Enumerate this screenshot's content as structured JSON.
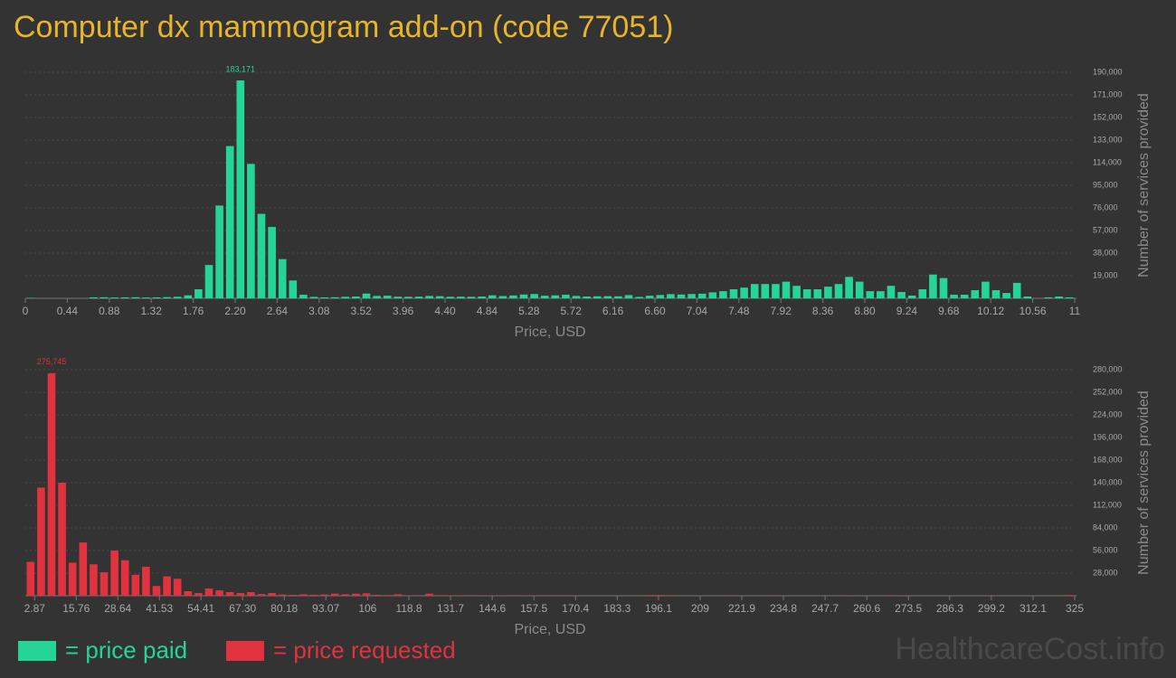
{
  "title": "Computer dx mammogram add-on (code 77051)",
  "watermark": "HealthcareCost.info",
  "chart_data": [
    {
      "type": "histogram",
      "x_label": "Price, USD",
      "y_label": "Number of services provided",
      "grid": true,
      "y_axis_side": "right",
      "bins": [
        0,
        0.11,
        0.22,
        0.33,
        0.44,
        0.55,
        0.66,
        0.77,
        0.88,
        0.99,
        1.1,
        1.21,
        1.32,
        1.43,
        1.54,
        1.65,
        1.76,
        1.87,
        1.98,
        2.09,
        2.2,
        2.31,
        2.42,
        2.53,
        2.64,
        2.75,
        2.86,
        2.97,
        3.08,
        3.19,
        3.3,
        3.41,
        3.52,
        3.63,
        3.74,
        3.85,
        3.96,
        4.07,
        4.18,
        4.29,
        4.4,
        4.51,
        4.62,
        4.73,
        4.84,
        4.95,
        5.06,
        5.17,
        5.28,
        5.39,
        5.5,
        5.61,
        5.72,
        5.83,
        5.94,
        6.05,
        6.16,
        6.27,
        6.38,
        6.49,
        6.6,
        6.71,
        6.82,
        6.93,
        7.04,
        7.15,
        7.26,
        7.37,
        7.48,
        7.59,
        7.7,
        7.81,
        7.92,
        8.03,
        8.14,
        8.25,
        8.36,
        8.47,
        8.58,
        8.69,
        8.8,
        8.91,
        9.02,
        9.13,
        9.24,
        9.35,
        9.46,
        9.57,
        9.68,
        9.79,
        9.9,
        10.01,
        10.12,
        10.23,
        10.34,
        10.45,
        10.56,
        10.67,
        10.78,
        10.89,
        11
      ],
      "series": [
        {
          "name": "= price paid",
          "color": "#25d597",
          "values": [
            300,
            0,
            0,
            0,
            0,
            0,
            800,
            900,
            700,
            800,
            900,
            700,
            800,
            1000,
            1300,
            2500,
            7600,
            28000,
            78000,
            128000,
            183171,
            113000,
            71000,
            60000,
            33000,
            15000,
            3000,
            1200,
            800,
            900,
            1300,
            1500,
            4000,
            2000,
            2200,
            1400,
            1300,
            1400,
            2000,
            1800,
            1300,
            1400,
            1300,
            1500,
            2500,
            1900,
            2400,
            3200,
            3600,
            2200,
            2500,
            3000,
            2000,
            1500,
            1700,
            1800,
            1700,
            2700,
            1200,
            2200,
            2800,
            3500,
            3200,
            3600,
            3900,
            5000,
            6000,
            7600,
            9000,
            12000,
            12000,
            12000,
            14000,
            10500,
            7600,
            7600,
            9800,
            12000,
            18000,
            14000,
            6000,
            6000,
            10500,
            5300,
            2300,
            7600,
            20000,
            17000,
            3000,
            3000,
            6800,
            14000,
            6800,
            4500,
            13000,
            1500,
            0,
            800,
            1500,
            800
          ],
          "value_labels": [
            null,
            null,
            null,
            null,
            null,
            null,
            null,
            null,
            null,
            null,
            null,
            null,
            null,
            null,
            null,
            null,
            null,
            null,
            null,
            null,
            "183,171",
            null,
            null,
            null,
            null,
            null,
            null,
            null,
            null,
            null,
            null,
            null,
            null,
            null,
            null,
            null,
            null,
            null,
            null,
            null,
            null,
            null,
            null,
            null,
            null,
            null,
            null,
            null,
            null,
            null,
            null,
            null,
            null,
            null,
            null,
            null,
            null,
            null,
            null,
            null,
            null,
            null,
            null,
            null,
            null,
            null,
            null,
            null,
            null,
            null,
            null,
            null,
            null,
            null,
            null,
            null,
            null,
            null,
            null,
            null,
            null,
            null,
            null,
            null,
            null,
            null,
            null,
            null,
            null,
            null,
            null,
            null,
            null,
            null,
            null,
            null,
            null,
            null,
            null,
            null
          ]
        }
      ],
      "xlim": [
        0,
        11
      ],
      "xticks": [
        0,
        0.44,
        0.88,
        1.32,
        1.76,
        {
          "value": 2.2,
          "label": "2.20"
        },
        2.64,
        3.08,
        3.52,
        3.96,
        {
          "value": 4.4,
          "label": "4.40"
        },
        4.84,
        5.28,
        5.72,
        6.16,
        {
          "value": 6.6,
          "label": "6.60"
        },
        7.04,
        7.48,
        7.92,
        8.36,
        {
          "value": 8.8,
          "label": "8.80"
        },
        9.24,
        9.68,
        10.12,
        10.56,
        11
      ],
      "ylim": [
        0,
        190000
      ],
      "yticks": [
        {
          "value": 19000,
          "label": "19,000"
        },
        {
          "value": 38000,
          "label": "38,000"
        },
        {
          "value": 57000,
          "label": "57,000"
        },
        {
          "value": 76000,
          "label": "76,000"
        },
        {
          "value": 95000,
          "label": "95,000"
        },
        {
          "value": 114000,
          "label": "114,000"
        },
        {
          "value": 133000,
          "label": "133,000"
        },
        {
          "value": 152000,
          "label": "152,000"
        },
        {
          "value": 171000,
          "label": "171,000"
        },
        {
          "value": 190000,
          "label": "190,000"
        }
      ]
    },
    {
      "type": "histogram",
      "x_label": "Price, USD",
      "y_label": "Number of services provided",
      "grid": true,
      "y_axis_side": "right",
      "bins": [
        0,
        3.25,
        6.5,
        9.75,
        13,
        16.25,
        19.5,
        22.75,
        26,
        29.25,
        32.5,
        35.75,
        39,
        42.25,
        45.5,
        48.75,
        52,
        55.25,
        58.5,
        61.75,
        65,
        68.25,
        71.5,
        74.75,
        78,
        81.25,
        84.5,
        87.75,
        91,
        94.25,
        97.5,
        100.75,
        104,
        107.25,
        110.5,
        113.75,
        117,
        120.25,
        123.5,
        126.75,
        130,
        133.25,
        136.5,
        139.75,
        143,
        146.25,
        149.5,
        152.75,
        156,
        159.25,
        162.5,
        165.75,
        169,
        172.25,
        175.5,
        178.75,
        182,
        185.25,
        188.5,
        191.75,
        195,
        198.25,
        201.5,
        204.75,
        208,
        211.25,
        214.5,
        217.75,
        221,
        224.25,
        227.5,
        230.75,
        234,
        237.25,
        240.5,
        243.75,
        247,
        250.25,
        253.5,
        256.75,
        260,
        263.25,
        266.5,
        269.75,
        273,
        276.25,
        279.5,
        282.75,
        286,
        289.25,
        292.5,
        295.75,
        299,
        302.25,
        305.5,
        308.75,
        312,
        315.25,
        318.5,
        321.75,
        325
      ],
      "series": [
        {
          "name": "= price requested",
          "color": "#e0323f",
          "values": [
            42000,
            134000,
            275745,
            140000,
            41000,
            66000,
            39000,
            29000,
            56000,
            44000,
            26000,
            36000,
            12000,
            24000,
            21000,
            5600,
            3400,
            9000,
            6700,
            4500,
            3400,
            4500,
            2200,
            3400,
            1500,
            1100,
            1800,
            1200,
            1500,
            2600,
            1800,
            2500,
            3000,
            1200,
            800,
            1800,
            400,
            300,
            2600,
            700,
            600,
            500,
            400,
            300,
            500,
            400,
            300,
            400,
            300,
            200,
            200,
            200,
            100,
            100,
            100,
            100,
            100,
            100,
            200,
            800,
            900,
            700,
            100,
            100,
            100,
            100,
            100,
            200,
            100,
            100,
            100,
            300,
            100,
            100,
            100,
            100,
            100,
            100,
            400,
            100,
            100,
            100,
            400,
            300,
            100,
            100,
            100,
            100,
            100,
            100,
            100,
            200,
            100,
            100,
            100,
            100,
            100,
            100,
            100,
            900
          ],
          "value_labels": [
            null,
            null,
            "275,745",
            null,
            null,
            null,
            null,
            null,
            null,
            null,
            null,
            null,
            null,
            null,
            null,
            null,
            null,
            null,
            null,
            null,
            null,
            null,
            null,
            null,
            null,
            null,
            null,
            null,
            null,
            null,
            null,
            null,
            null,
            null,
            null,
            null,
            null,
            null,
            null,
            null,
            null,
            null,
            null,
            null,
            null,
            null,
            null,
            null,
            null,
            null,
            null,
            null,
            null,
            null,
            null,
            null,
            null,
            null,
            null,
            null,
            null,
            null,
            null,
            null,
            null,
            null,
            null,
            null,
            null,
            null,
            null,
            null,
            null,
            null,
            null,
            null,
            null,
            null,
            null,
            null,
            null,
            null,
            null,
            null,
            null,
            null,
            null,
            null,
            null,
            null,
            null,
            null,
            null,
            null,
            null,
            null,
            null,
            null,
            null,
            null
          ]
        }
      ],
      "xlim": [
        0,
        325
      ],
      "xticks": [
        2.87,
        15.76,
        28.64,
        41.53,
        54.41,
        {
          "value": 67.3,
          "label": "67.30"
        },
        80.18,
        93.07,
        106,
        118.8,
        131.7,
        144.6,
        157.5,
        170.4,
        183.3,
        196.1,
        209,
        221.9,
        234.8,
        247.7,
        260.6,
        273.5,
        286.3,
        299.2,
        312.1,
        325
      ],
      "ylim": [
        0,
        280000
      ],
      "yticks": [
        {
          "value": 28000,
          "label": "28,000"
        },
        {
          "value": 56000,
          "label": "56,000"
        },
        {
          "value": 84000,
          "label": "84,000"
        },
        {
          "value": 112000,
          "label": "112,000"
        },
        {
          "value": 140000,
          "label": "140,000"
        },
        {
          "value": 168000,
          "label": "168,000"
        },
        {
          "value": 196000,
          "label": "196,000"
        },
        {
          "value": 224000,
          "label": "224,000"
        },
        {
          "value": 252000,
          "label": "252,000"
        },
        {
          "value": 280000,
          "label": "280,000"
        }
      ]
    }
  ]
}
